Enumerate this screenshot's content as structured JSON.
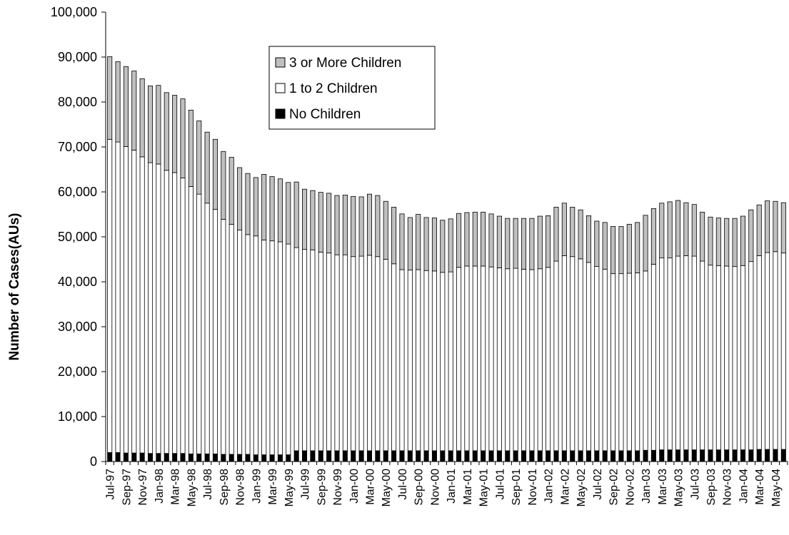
{
  "chart_data": {
    "type": "bar",
    "stacked": true,
    "title": "",
    "xlabel": "",
    "ylabel": "Number of Cases(AUs)",
    "ylim": [
      0,
      100000
    ],
    "yticks": [
      0,
      10000,
      20000,
      30000,
      40000,
      50000,
      60000,
      70000,
      80000,
      90000,
      100000
    ],
    "ytick_labels": [
      "0",
      "10,000",
      "20,000",
      "30,000",
      "40,000",
      "50,000",
      "60,000",
      "70,000",
      "80,000",
      "90,000",
      "100,000"
    ],
    "categories": [
      "Jul-97",
      "Aug-97",
      "Sep-97",
      "Oct-97",
      "Nov-97",
      "Dec-97",
      "Jan-98",
      "Feb-98",
      "Mar-98",
      "Apr-98",
      "May-98",
      "Jun-98",
      "Jul-98",
      "Aug-98",
      "Sep-98",
      "Oct-98",
      "Nov-98",
      "Dec-98",
      "Jan-99",
      "Feb-99",
      "Mar-99",
      "Apr-99",
      "May-99",
      "Jun-99",
      "Jul-99",
      "Aug-99",
      "Sep-99",
      "Oct-99",
      "Nov-99",
      "Dec-99",
      "Jan-00",
      "Feb-00",
      "Mar-00",
      "Apr-00",
      "May-00",
      "Jun-00",
      "Jul-00",
      "Aug-00",
      "Sep-00",
      "Oct-00",
      "Nov-00",
      "Dec-00",
      "Jan-01",
      "Feb-01",
      "Mar-01",
      "Apr-01",
      "May-01",
      "Jun-01",
      "Jul-01",
      "Aug-01",
      "Sep-01",
      "Oct-01",
      "Nov-01",
      "Dec-01",
      "Jan-02",
      "Feb-02",
      "Mar-02",
      "Apr-02",
      "May-02",
      "Jun-02",
      "Jul-02",
      "Aug-02",
      "Sep-02",
      "Oct-02",
      "Nov-02",
      "Dec-02",
      "Jan-03",
      "Feb-03",
      "Mar-03",
      "Apr-03",
      "May-03",
      "Jun-03",
      "Jul-03",
      "Aug-03",
      "Sep-03",
      "Oct-03",
      "Nov-03",
      "Dec-03",
      "Jan-04",
      "Feb-04",
      "Mar-04",
      "Apr-04",
      "May-04",
      "Jun-04"
    ],
    "visible_tick_labels": [
      "Jul-97",
      "Sep-97",
      "Nov-97",
      "Jan-98",
      "Mar-98",
      "May-98",
      "Jul-98",
      "Sep-98",
      "Nov-98",
      "Jan-99",
      "Mar-99",
      "May-99",
      "Jul-99",
      "Sep-99",
      "Nov-99",
      "Jan-00",
      "Mar-00",
      "May-00",
      "Jul-00",
      "Sep-00",
      "Nov-00",
      "Jan-01",
      "Mar-01",
      "May-01",
      "Jul-01",
      "Sep-01",
      "Nov-01",
      "Jan-02",
      "Mar-02",
      "May-02",
      "Jul-02",
      "Sep-02",
      "Nov-02",
      "Jan-03",
      "Mar-03",
      "May-03",
      "Jul-03",
      "Sep-03",
      "Nov-03",
      "Jan-04",
      "Mar-04",
      "May-04"
    ],
    "legend_position": "top-center",
    "grid": false,
    "series": [
      {
        "name": "No Children",
        "color": "#000000",
        "values": [
          2000,
          2000,
          1900,
          1900,
          1900,
          1800,
          1800,
          1800,
          1800,
          1800,
          1700,
          1700,
          1700,
          1700,
          1600,
          1600,
          1600,
          1600,
          1500,
          1500,
          1500,
          1500,
          1500,
          2400,
          2400,
          2400,
          2400,
          2400,
          2400,
          2400,
          2400,
          2400,
          2400,
          2400,
          2400,
          2400,
          2400,
          2400,
          2400,
          2400,
          2400,
          2400,
          2400,
          2400,
          2400,
          2400,
          2400,
          2400,
          2400,
          2400,
          2400,
          2400,
          2400,
          2400,
          2400,
          2400,
          2400,
          2400,
          2400,
          2400,
          2400,
          2400,
          2400,
          2400,
          2400,
          2400,
          2500,
          2500,
          2600,
          2600,
          2600,
          2600,
          2600,
          2600,
          2600,
          2600,
          2600,
          2600,
          2600,
          2600,
          2700,
          2700,
          2700,
          2700
        ]
      },
      {
        "name": "1 to 2 Children",
        "color": "#ffffff",
        "values": [
          69700,
          69100,
          68200,
          67400,
          65900,
          64700,
          64400,
          63000,
          62500,
          61300,
          59500,
          57800,
          55800,
          54400,
          52300,
          51200,
          49900,
          48900,
          48700,
          47800,
          47600,
          47400,
          46900,
          45200,
          44800,
          44700,
          44200,
          44000,
          43600,
          43600,
          43200,
          43300,
          43500,
          43200,
          42600,
          41600,
          40300,
          40200,
          40300,
          40100,
          40000,
          39700,
          39800,
          40800,
          41100,
          41100,
          41100,
          40900,
          40700,
          40500,
          40600,
          40400,
          40300,
          40500,
          40800,
          42200,
          43400,
          43200,
          42700,
          41900,
          41000,
          40400,
          39400,
          39400,
          39500,
          39600,
          39900,
          41400,
          42700,
          42700,
          43100,
          43200,
          43100,
          42000,
          41100,
          41000,
          40900,
          40800,
          41000,
          41900,
          43100,
          43800,
          44000,
          43700
        ]
      },
      {
        "name": "3 or More Children",
        "color": "#c0c0c0",
        "values": [
          18400,
          17900,
          17800,
          17600,
          17400,
          17100,
          17500,
          17300,
          17200,
          17600,
          17000,
          16300,
          15800,
          15600,
          15100,
          14900,
          13900,
          13600,
          13000,
          14600,
          14300,
          14000,
          13700,
          14600,
          13400,
          13200,
          13300,
          13300,
          13200,
          13300,
          13400,
          13200,
          13600,
          13600,
          12900,
          12600,
          12400,
          11700,
          12300,
          11800,
          11800,
          11600,
          11800,
          12000,
          11900,
          12000,
          12000,
          11800,
          11500,
          11200,
          11100,
          11300,
          11400,
          11700,
          11500,
          12000,
          11700,
          11000,
          10900,
          10400,
          10100,
          10400,
          10500,
          10500,
          10900,
          11200,
          12400,
          12400,
          12200,
          12500,
          12400,
          11800,
          11500,
          10900,
          10700,
          10600,
          10600,
          10700,
          11000,
          11500,
          11300,
          11500,
          11200,
          11200
        ]
      }
    ]
  }
}
